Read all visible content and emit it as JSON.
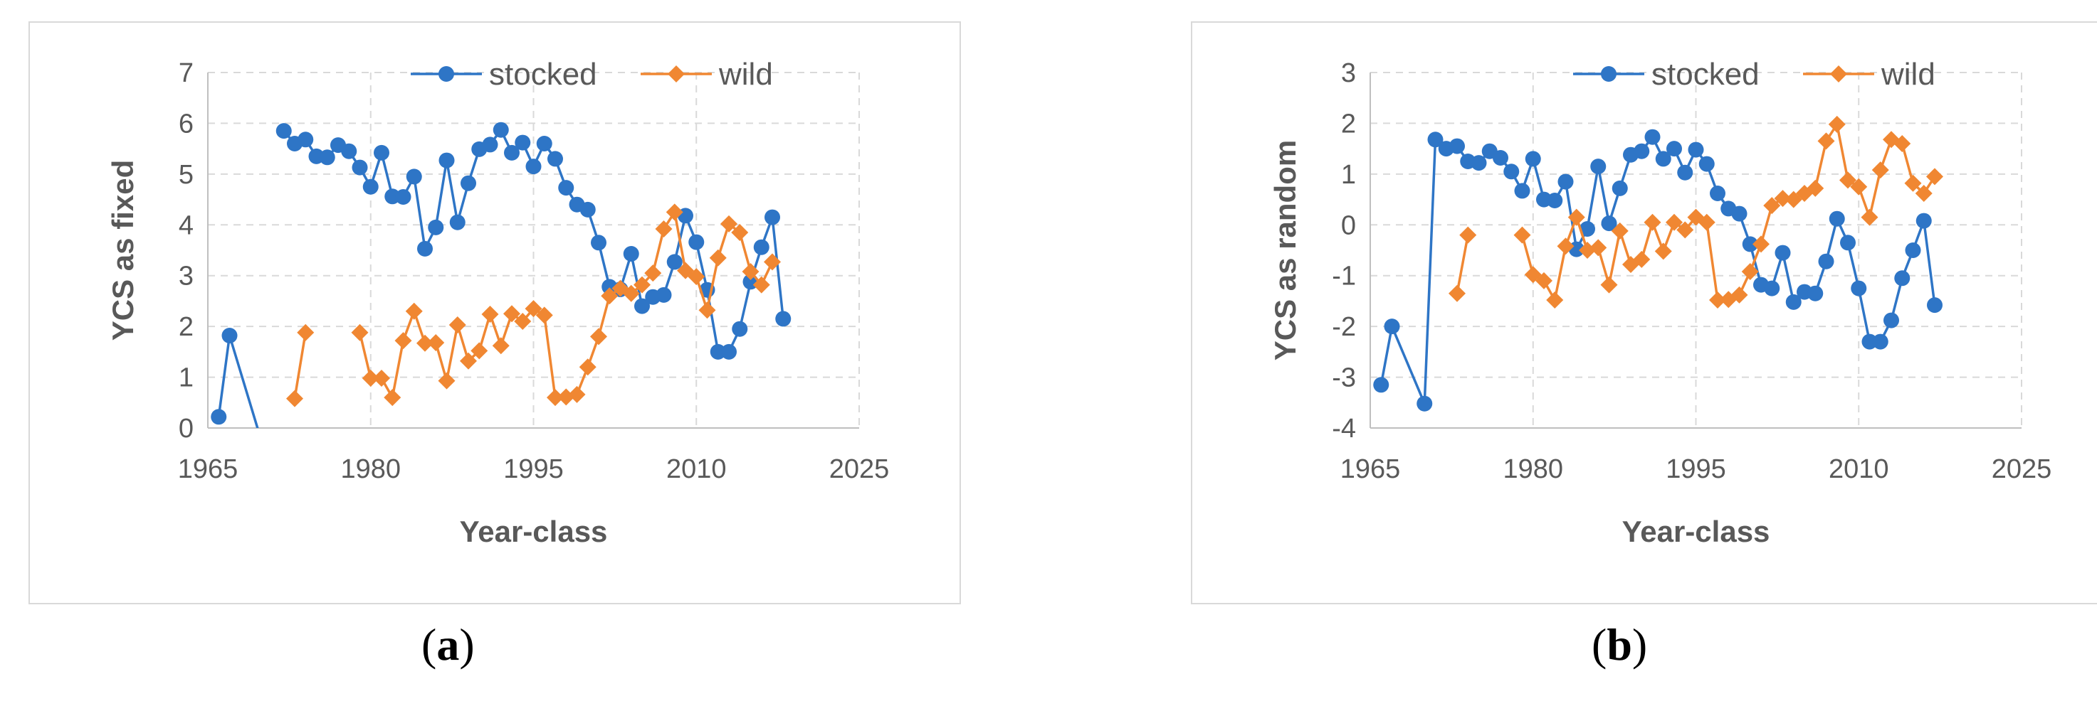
{
  "chart_data": [
    {
      "type": "line",
      "panel_label": "a",
      "xlabel": "Year-class",
      "ylabel": "YCS as fixed",
      "xlim": [
        1965,
        2025
      ],
      "ylim": [
        0,
        7
      ],
      "xticks": [
        1965,
        1980,
        1995,
        2010,
        2025
      ],
      "yticks": [
        0,
        1,
        2,
        3,
        4,
        5,
        6,
        7
      ],
      "grid": true,
      "legend": "top",
      "series": [
        {
          "name": "stocked",
          "color": "#2e75c6",
          "marker": "circle",
          "segments": [
            [
              [
                1966,
                0.22
              ],
              [
                1967,
                1.82
              ],
              [
                1970,
                -0.3
              ]
            ],
            [
              [
                1972,
                5.85
              ],
              [
                1973,
                5.6
              ],
              [
                1974,
                5.68
              ],
              [
                1975,
                5.35
              ],
              [
                1976,
                5.33
              ],
              [
                1977,
                5.57
              ],
              [
                1978,
                5.45
              ],
              [
                1979,
                5.13
              ],
              [
                1980,
                4.75
              ],
              [
                1981,
                5.42
              ],
              [
                1982,
                4.56
              ],
              [
                1983,
                4.55
              ],
              [
                1984,
                4.95
              ],
              [
                1985,
                3.53
              ],
              [
                1986,
                3.95
              ],
              [
                1987,
                5.27
              ],
              [
                1988,
                4.05
              ],
              [
                1989,
                4.82
              ],
              [
                1990,
                5.49
              ],
              [
                1991,
                5.58
              ],
              [
                1992,
                5.87
              ],
              [
                1993,
                5.42
              ],
              [
                1994,
                5.62
              ],
              [
                1995,
                5.15
              ],
              [
                1996,
                5.6
              ],
              [
                1997,
                5.3
              ],
              [
                1998,
                4.73
              ],
              [
                1999,
                4.4
              ],
              [
                2000,
                4.3
              ],
              [
                2001,
                3.65
              ],
              [
                2002,
                2.78
              ],
              [
                2003,
                2.73
              ],
              [
                2004,
                3.43
              ],
              [
                2005,
                2.4
              ],
              [
                2006,
                2.58
              ],
              [
                2007,
                2.62
              ],
              [
                2008,
                3.27
              ],
              [
                2009,
                4.18
              ],
              [
                2010,
                3.66
              ],
              [
                2011,
                2.72
              ],
              [
                2012,
                1.5
              ],
              [
                2013,
                1.5
              ],
              [
                2014,
                1.95
              ],
              [
                2015,
                2.88
              ],
              [
                2016,
                3.56
              ],
              [
                2017,
                4.15
              ],
              [
                2018,
                2.15
              ]
            ]
          ]
        },
        {
          "name": "wild",
          "color": "#f08732",
          "marker": "diamond",
          "segments": [
            [
              [
                1973,
                0.58
              ],
              [
                1974,
                1.88
              ]
            ],
            [
              [
                1979,
                1.88
              ],
              [
                1980,
                0.98
              ],
              [
                1981,
                0.98
              ],
              [
                1982,
                0.6
              ],
              [
                1983,
                1.72
              ],
              [
                1984,
                2.3
              ],
              [
                1985,
                1.67
              ],
              [
                1986,
                1.68
              ],
              [
                1987,
                0.93
              ],
              [
                1988,
                2.03
              ],
              [
                1989,
                1.32
              ],
              [
                1990,
                1.52
              ],
              [
                1991,
                2.24
              ],
              [
                1992,
                1.62
              ],
              [
                1993,
                2.25
              ],
              [
                1994,
                2.1
              ],
              [
                1995,
                2.35
              ],
              [
                1996,
                2.22
              ],
              [
                1997,
                0.6
              ],
              [
                1998,
                0.61
              ],
              [
                1999,
                0.66
              ],
              [
                2000,
                1.2
              ],
              [
                2001,
                1.8
              ],
              [
                2002,
                2.6
              ],
              [
                2003,
                2.75
              ],
              [
                2004,
                2.65
              ],
              [
                2005,
                2.82
              ],
              [
                2006,
                3.05
              ],
              [
                2007,
                3.92
              ],
              [
                2008,
                4.25
              ],
              [
                2009,
                3.1
              ],
              [
                2010,
                2.98
              ],
              [
                2011,
                2.32
              ],
              [
                2012,
                3.35
              ],
              [
                2013,
                4.02
              ],
              [
                2014,
                3.85
              ],
              [
                2015,
                3.08
              ],
              [
                2016,
                2.82
              ],
              [
                2017,
                3.27
              ]
            ]
          ]
        }
      ]
    },
    {
      "type": "line",
      "panel_label": "b",
      "xlabel": "Year-class",
      "ylabel": "YCS as random",
      "xlim": [
        1965,
        2025
      ],
      "ylim": [
        -4,
        3
      ],
      "xticks": [
        1965,
        1980,
        1995,
        2010,
        2025
      ],
      "yticks": [
        -4,
        -3,
        -2,
        -1,
        0,
        1,
        2,
        3
      ],
      "grid": true,
      "legend": "top",
      "series": [
        {
          "name": "stocked",
          "color": "#2e75c6",
          "marker": "circle",
          "segments": [
            [
              [
                1966,
                -3.15
              ],
              [
                1967,
                -2.0
              ],
              [
                1970,
                -3.52
              ],
              [
                1971,
                1.68
              ],
              [
                1972,
                1.5
              ],
              [
                1973,
                1.55
              ],
              [
                1974,
                1.25
              ],
              [
                1975,
                1.22
              ],
              [
                1976,
                1.45
              ],
              [
                1977,
                1.32
              ],
              [
                1978,
                1.05
              ],
              [
                1979,
                0.67
              ],
              [
                1980,
                1.3
              ],
              [
                1981,
                0.5
              ],
              [
                1982,
                0.48
              ],
              [
                1983,
                0.85
              ],
              [
                1984,
                -0.48
              ],
              [
                1985,
                -0.08
              ],
              [
                1986,
                1.15
              ],
              [
                1987,
                0.03
              ],
              [
                1988,
                0.72
              ],
              [
                1989,
                1.38
              ],
              [
                1990,
                1.45
              ],
              [
                1991,
                1.73
              ],
              [
                1992,
                1.3
              ],
              [
                1993,
                1.5
              ],
              [
                1994,
                1.03
              ],
              [
                1995,
                1.48
              ],
              [
                1996,
                1.2
              ],
              [
                1997,
                0.62
              ],
              [
                1998,
                0.32
              ],
              [
                1999,
                0.22
              ],
              [
                2000,
                -0.38
              ],
              [
                2001,
                -1.18
              ],
              [
                2002,
                -1.25
              ],
              [
                2003,
                -0.55
              ],
              [
                2004,
                -1.52
              ],
              [
                2005,
                -1.32
              ],
              [
                2006,
                -1.35
              ],
              [
                2007,
                -0.72
              ],
              [
                2008,
                0.12
              ],
              [
                2009,
                -0.35
              ],
              [
                2010,
                -1.25
              ],
              [
                2011,
                -2.3
              ],
              [
                2012,
                -2.3
              ],
              [
                2013,
                -1.88
              ],
              [
                2014,
                -1.05
              ],
              [
                2015,
                -0.5
              ],
              [
                2016,
                0.08
              ],
              [
                2017,
                -1.58
              ]
            ]
          ]
        },
        {
          "name": "wild",
          "color": "#f08732",
          "marker": "diamond",
          "segments": [
            [
              [
                1973,
                -1.35
              ],
              [
                1974,
                -0.2
              ]
            ],
            [
              [
                1979,
                -0.2
              ],
              [
                1980,
                -0.98
              ],
              [
                1981,
                -1.1
              ],
              [
                1982,
                -1.48
              ],
              [
                1983,
                -0.42
              ],
              [
                1984,
                0.15
              ],
              [
                1985,
                -0.5
              ],
              [
                1986,
                -0.45
              ],
              [
                1987,
                -1.18
              ],
              [
                1988,
                -0.12
              ],
              [
                1989,
                -0.78
              ],
              [
                1990,
                -0.68
              ],
              [
                1991,
                0.05
              ],
              [
                1992,
                -0.52
              ],
              [
                1993,
                0.05
              ],
              [
                1994,
                -0.1
              ],
              [
                1995,
                0.15
              ],
              [
                1996,
                0.05
              ],
              [
                1997,
                -1.48
              ],
              [
                1998,
                -1.47
              ],
              [
                1999,
                -1.38
              ],
              [
                2000,
                -0.92
              ],
              [
                2001,
                -0.38
              ],
              [
                2002,
                0.38
              ],
              [
                2003,
                0.52
              ],
              [
                2004,
                0.5
              ],
              [
                2005,
                0.62
              ],
              [
                2006,
                0.72
              ],
              [
                2007,
                1.65
              ],
              [
                2008,
                1.98
              ],
              [
                2009,
                0.88
              ],
              [
                2010,
                0.75
              ],
              [
                2011,
                0.15
              ],
              [
                2012,
                1.08
              ],
              [
                2013,
                1.68
              ],
              [
                2014,
                1.6
              ],
              [
                2015,
                0.82
              ],
              [
                2016,
                0.62
              ],
              [
                2017,
                0.95
              ]
            ]
          ]
        }
      ]
    }
  ]
}
